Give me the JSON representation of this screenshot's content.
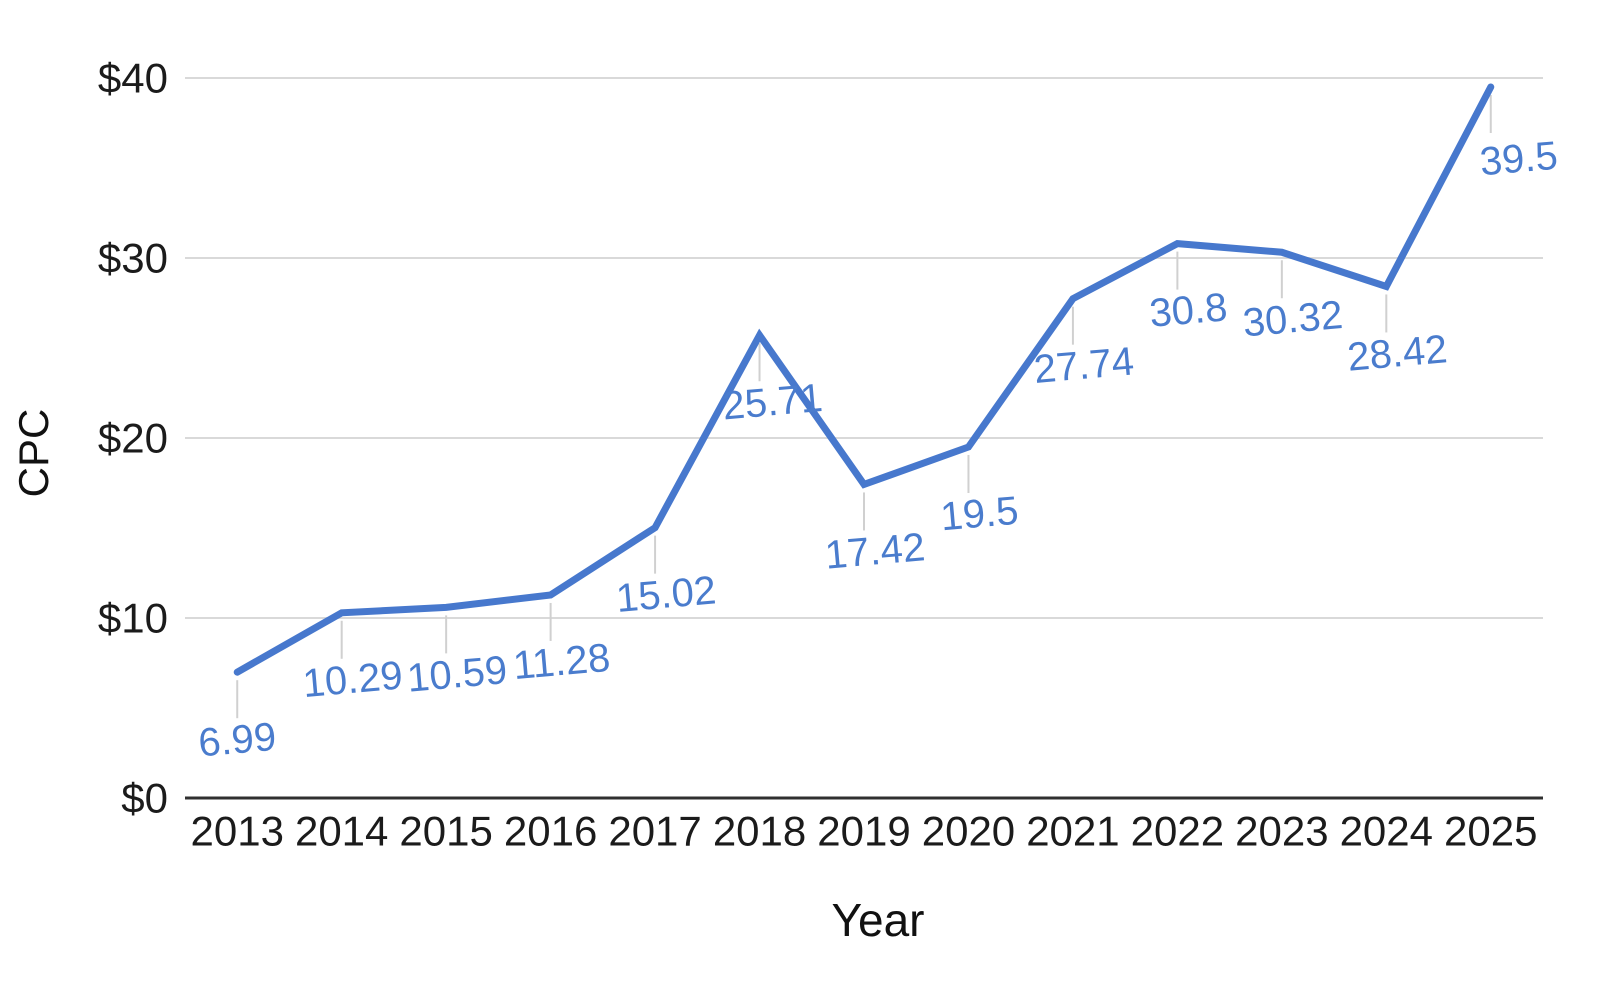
{
  "chart_data": {
    "type": "line",
    "title": "",
    "xlabel": "Year",
    "ylabel": "CPC",
    "categories": [
      "2013",
      "2014",
      "2015",
      "2016",
      "2017",
      "2018",
      "2019",
      "2020",
      "2021",
      "2022",
      "2023",
      "2024",
      "2025"
    ],
    "series": [
      {
        "name": "CPC",
        "values": [
          6.99,
          10.29,
          10.59,
          11.28,
          15.02,
          25.71,
          17.42,
          19.5,
          27.74,
          30.8,
          30.32,
          28.42,
          39.5
        ]
      }
    ],
    "data_labels": [
      "6.99",
      "10.29",
      "10.59",
      "11.28",
      "15.02",
      "25.71",
      "17.42",
      "19.5",
      "27.74",
      "30.8",
      "30.32",
      "28.42",
      "39.5"
    ],
    "y_ticks": [
      {
        "label": "$0",
        "value": 0
      },
      {
        "label": "$10",
        "value": 10
      },
      {
        "label": "$20",
        "value": 20
      },
      {
        "label": "$30",
        "value": 30
      },
      {
        "label": "$40",
        "value": 40
      }
    ],
    "ylim": [
      0,
      40
    ],
    "grid": true,
    "legend": "none",
    "colors": {
      "line": "#4778cd",
      "label_text": "#4a7ccd",
      "grid": "#d9d9d9",
      "axis_line": "#303030",
      "tick_text": "#1b1b1b",
      "leader": "#d0d0d0"
    }
  }
}
